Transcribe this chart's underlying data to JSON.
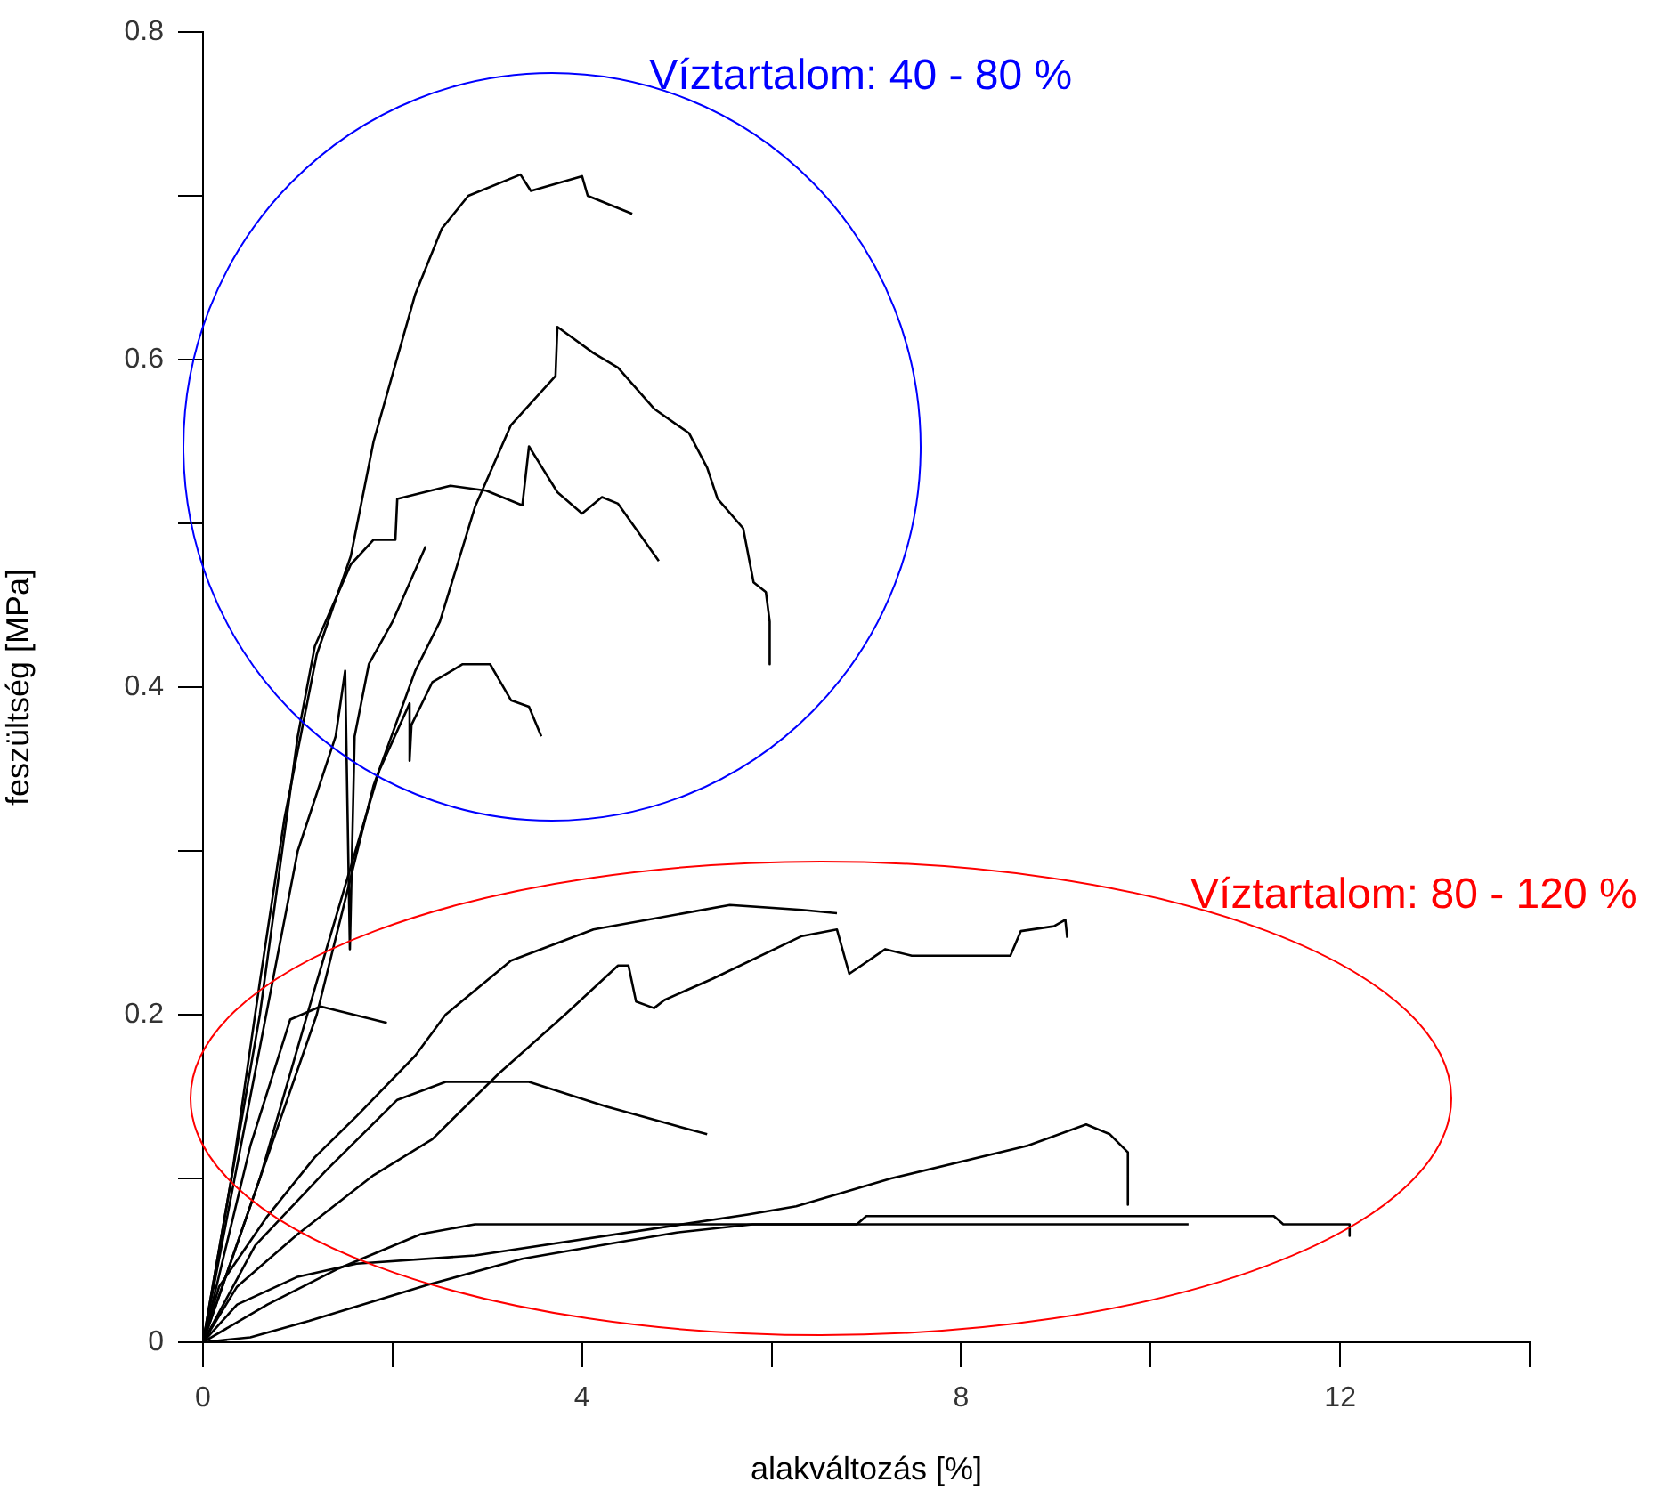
{
  "chart_data": {
    "type": "line",
    "xlabel": "alakváltozás [%]",
    "ylabel": "feszültség [MPa]",
    "xlim": [
      0,
      14
    ],
    "xticks": [
      0,
      {
        "value": 2,
        "label": null
      },
      4,
      {
        "value": 6,
        "label": null
      },
      8,
      {
        "value": 10,
        "label": null
      },
      12,
      {
        "value": 14,
        "label": null
      }
    ],
    "ylim": [
      0,
      0.8
    ],
    "yticks": [
      0,
      {
        "value": 0.1,
        "label": null
      },
      0.2,
      {
        "value": 0.3,
        "label": null
      },
      0.4,
      {
        "value": 0.5,
        "label": null
      },
      0.6,
      {
        "value": 0.7,
        "label": null
      },
      0.8
    ],
    "grid": false,
    "legend": false,
    "marker": "none",
    "line_style": "solid",
    "annotations": [
      "Víztartalom: 40 - 80 %",
      "Víztartalom: 80 - 120 %"
    ],
    "series": [
      {
        "color": "#000000",
        "x": [
          0,
          0.3,
          0.6,
          0.86,
          1.2,
          1.56,
          1.8,
          2.24,
          2.52,
          2.8,
          3.35,
          3.46,
          4.0,
          4.06,
          4.53
        ],
        "values": [
          0,
          0.1,
          0.22,
          0.32,
          0.42,
          0.48,
          0.55,
          0.64,
          0.68,
          0.7,
          0.713,
          0.703,
          0.712,
          0.7,
          0.689
        ]
      },
      {
        "color": "#000000",
        "x": [
          0,
          0.6,
          1.2,
          1.8,
          2.24,
          2.5,
          2.87,
          3.25,
          3.72,
          3.74,
          4.12,
          4.38,
          4.76,
          5.13,
          5.32,
          5.43,
          5.7,
          5.81,
          5.94,
          5.98,
          5.98
        ],
        "values": [
          0,
          0.1,
          0.2,
          0.34,
          0.41,
          0.44,
          0.51,
          0.56,
          0.59,
          0.62,
          0.604,
          0.595,
          0.57,
          0.555,
          0.534,
          0.515,
          0.497,
          0.464,
          0.458,
          0.44,
          0.414
        ]
      },
      {
        "color": "#000000",
        "x": [
          0,
          0.3,
          0.6,
          1.0,
          1.18,
          1.56,
          1.8,
          2.03,
          2.05,
          2.61,
          2.99,
          3.37,
          3.44,
          3.74,
          4.0,
          4.21,
          4.38,
          4.81
        ],
        "values": [
          0,
          0.1,
          0.2,
          0.37,
          0.425,
          0.475,
          0.49,
          0.49,
          0.515,
          0.523,
          0.52,
          0.511,
          0.547,
          0.519,
          0.506,
          0.516,
          0.512,
          0.477
        ]
      },
      {
        "color": "#000000",
        "x": [
          0,
          0.5,
          1.0,
          1.4,
          1.5,
          1.55,
          1.6,
          1.75,
          2.0,
          2.35
        ],
        "values": [
          0,
          0.15,
          0.3,
          0.37,
          0.41,
          0.24,
          0.37,
          0.414,
          0.44,
          0.486
        ]
      },
      {
        "color": "#000000",
        "x": [
          0,
          0.6,
          1.2,
          1.86,
          2.18,
          2.18,
          2.2,
          2.42,
          2.74,
          3.03,
          3.25,
          3.44,
          3.57
        ],
        "values": [
          0,
          0.1,
          0.22,
          0.349,
          0.39,
          0.355,
          0.377,
          0.403,
          0.414,
          0.414,
          0.392,
          0.388,
          0.37
        ]
      },
      {
        "color": "#000000",
        "x": [
          0,
          0.5,
          0.92,
          1.24,
          1.94
        ],
        "values": [
          0,
          0.12,
          0.197,
          0.205,
          0.195
        ]
      },
      {
        "color": "#000000",
        "x": [
          0,
          0.17,
          0.68,
          1.18,
          1.62,
          2.24,
          2.56,
          3.25,
          4.12,
          5.56,
          6.32,
          6.69
        ],
        "values": [
          0,
          0.034,
          0.077,
          0.113,
          0.138,
          0.175,
          0.2,
          0.233,
          0.252,
          0.267,
          0.264,
          0.262
        ]
      },
      {
        "color": "#000000",
        "x": [
          0,
          0.36,
          1.0,
          1.8,
          2.42,
          3.12,
          3.82,
          4.38,
          4.49,
          4.57,
          4.76,
          4.87,
          5.38,
          6.32,
          6.69,
          6.82,
          7.2,
          7.48,
          8.52,
          8.63,
          8.98,
          9.1,
          9.12
        ],
        "values": [
          0,
          0.034,
          0.066,
          0.102,
          0.124,
          0.164,
          0.2,
          0.23,
          0.23,
          0.208,
          0.204,
          0.209,
          0.222,
          0.248,
          0.252,
          0.225,
          0.24,
          0.236,
          0.236,
          0.251,
          0.254,
          0.258,
          0.247
        ]
      },
      {
        "color": "#000000",
        "x": [
          0,
          0.55,
          1.3,
          2.05,
          2.56,
          3.44,
          4.25,
          4.94,
          5.32
        ],
        "values": [
          0,
          0.059,
          0.105,
          0.148,
          0.159,
          0.159,
          0.144,
          0.133,
          0.127
        ]
      },
      {
        "color": "#000000",
        "x": [
          0,
          0.36,
          1.0,
          1.62,
          2.87,
          5.75,
          6.26,
          7.26,
          8.7,
          9.32,
          9.57,
          9.76,
          9.76
        ],
        "values": [
          0,
          0.023,
          0.04,
          0.048,
          0.053,
          0.078,
          0.083,
          0.1,
          0.12,
          0.133,
          0.127,
          0.116,
          0.084
        ]
      },
      {
        "color": "#000000",
        "x": [
          0,
          0.68,
          1.43,
          2.3,
          2.87,
          6.9,
          7.0,
          11.3,
          11.4,
          12.1,
          12.1
        ],
        "values": [
          0,
          0.023,
          0.045,
          0.066,
          0.072,
          0.072,
          0.077,
          0.077,
          0.072,
          0.072,
          0.065
        ]
      },
      {
        "color": "#000000",
        "x": [
          0,
          0.5,
          1.12,
          2.37,
          3.37,
          4.38,
          5.0,
          5.8,
          10.4
        ],
        "values": [
          0,
          0.003,
          0.013,
          0.035,
          0.051,
          0.061,
          0.067,
          0.072,
          0.072
        ]
      }
    ]
  }
}
